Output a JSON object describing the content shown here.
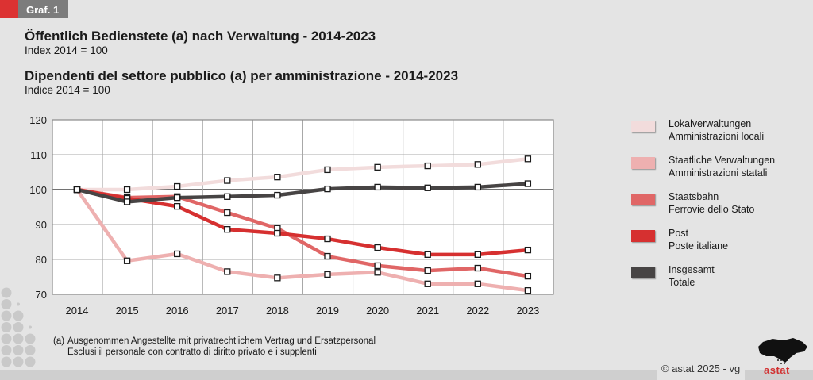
{
  "header": {
    "tag_label": "Graf. 1",
    "title_de": "Öffentlich Bedienstete (a) nach Verwaltung - 2014-2023",
    "subtitle_de": "Index 2014 = 100",
    "title_it": "Dipendenti del settore pubblico (a) per amministrazione - 2014-2023",
    "subtitle_it": "Indice 2014 = 100"
  },
  "colors": {
    "accent_red": "#dc3232",
    "tag_grey": "#7c7c7c",
    "background": "#e4e4e4"
  },
  "chart_data": {
    "type": "line",
    "title": "Öffentlich Bedienstete (a) nach Verwaltung - 2014-2023 / Dipendenti del settore pubblico (a) per amministrazione - 2014-2023",
    "subtitle": "Index 2014 = 100 / Indice 2014 = 100",
    "xlabel": "",
    "ylabel": "",
    "x": [
      "2014",
      "2015",
      "2016",
      "2017",
      "2018",
      "2019",
      "2020",
      "2021",
      "2022",
      "2023"
    ],
    "ylim": [
      70,
      120
    ],
    "yticks": [
      "70",
      "80",
      "90",
      "100",
      "110",
      "120"
    ],
    "grid": true,
    "legend_position": "right",
    "reference_line": 100,
    "series": [
      {
        "name": "Lokalverwaltungen / Amministrazioni locali",
        "name_de": "Lokalverwaltungen",
        "name_it": "Amministrazioni locali",
        "color": "#f2dcdc",
        "values": [
          100,
          100.0,
          100.9,
          102.6,
          103.6,
          105.7,
          106.4,
          106.8,
          107.2,
          108.8
        ]
      },
      {
        "name": "Staatliche Verwaltungen / Amministrazioni statali",
        "name_de": "Staatliche Verwaltungen",
        "name_it": "Amministrazioni statali",
        "color": "#eeb0b0",
        "values": [
          100,
          79.6,
          81.6,
          76.5,
          74.7,
          75.7,
          76.3,
          73.0,
          73.0,
          71.1
        ]
      },
      {
        "name": "Staatsbahn / Ferrovie dello Stato",
        "name_de": "Staatsbahn",
        "name_it": "Ferrovie dello Stato",
        "color": "#e06666",
        "values": [
          100,
          97.7,
          98.0,
          93.4,
          88.9,
          80.9,
          78.2,
          76.8,
          77.5,
          75.2
        ]
      },
      {
        "name": "Post / Poste italiane",
        "name_de": "Post",
        "name_it": "Poste italiane",
        "color": "#d63030",
        "values": [
          100,
          97.5,
          95.2,
          88.6,
          87.5,
          85.9,
          83.4,
          81.4,
          81.4,
          82.7
        ]
      },
      {
        "name": "Insgesamt / Totale",
        "name_de": "Insgesamt",
        "name_it": "Totale",
        "color": "#474444",
        "values": [
          100,
          96.5,
          97.7,
          98.0,
          98.4,
          100.2,
          100.7,
          100.5,
          100.7,
          101.7
        ]
      }
    ]
  },
  "footnote": {
    "mark": "(a)",
    "line_de": "Ausgenommen Angestellte mit privatrechtlichem Vertrag und Ersatzpersonal",
    "line_it": "Esclusi il personale con contratto di diritto privato e i supplenti"
  },
  "footer": {
    "copyright": "© astat 2025 - vg",
    "logo_text": "astat"
  }
}
